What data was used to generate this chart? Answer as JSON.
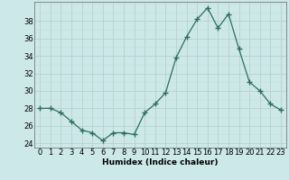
{
  "x": [
    0,
    1,
    2,
    3,
    4,
    5,
    6,
    7,
    8,
    9,
    10,
    11,
    12,
    13,
    14,
    15,
    16,
    17,
    18,
    19,
    20,
    21,
    22,
    23
  ],
  "y": [
    28,
    28,
    27.5,
    26.5,
    25.5,
    25.2,
    24.3,
    25.2,
    25.2,
    25.0,
    27.5,
    28.5,
    29.8,
    33.8,
    36.2,
    38.2,
    39.5,
    37.2,
    38.8,
    34.8,
    31.0,
    30.0,
    28.5,
    27.8
  ],
  "line_color": "#2d6e5e",
  "marker": "+",
  "marker_size": 4,
  "bg_color": "#cce8e8",
  "grid_color_major": "#b8d0d0",
  "grid_color_minor": "#c8dcdc",
  "xlabel": "Humidex (Indice chaleur)",
  "xlim": [
    -0.5,
    23.5
  ],
  "ylim": [
    23.5,
    40.2
  ],
  "yticks": [
    24,
    26,
    28,
    30,
    32,
    34,
    36,
    38
  ],
  "xticks": [
    0,
    1,
    2,
    3,
    4,
    5,
    6,
    7,
    8,
    9,
    10,
    11,
    12,
    13,
    14,
    15,
    16,
    17,
    18,
    19,
    20,
    21,
    22,
    23
  ],
  "xlabel_fontsize": 6.5,
  "tick_fontsize": 6.0
}
